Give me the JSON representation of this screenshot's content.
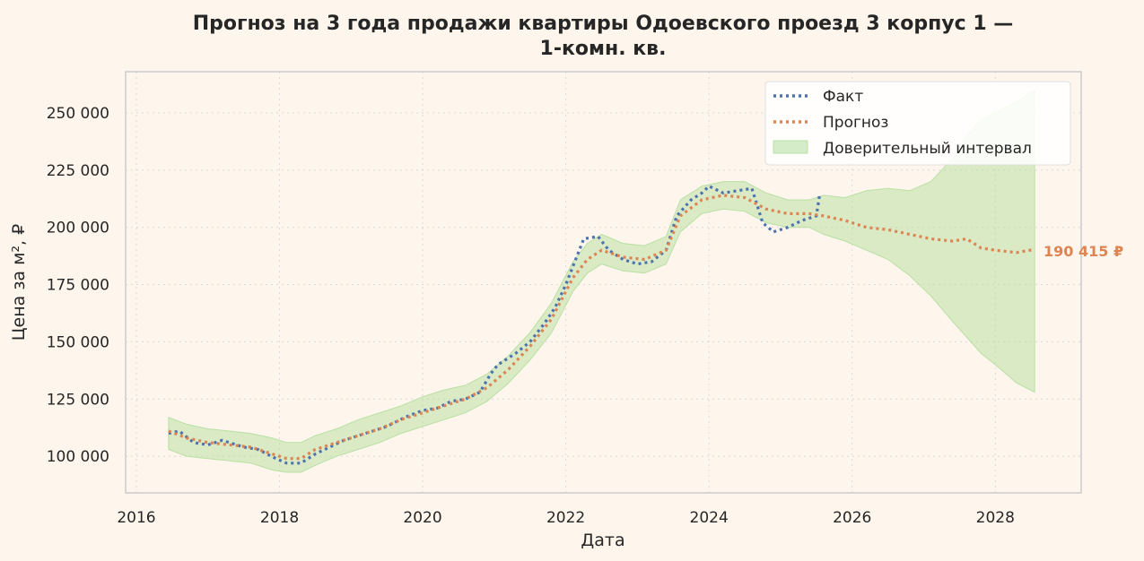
{
  "chart_data": {
    "type": "line",
    "title_lines": [
      "Прогноз на 3 года продажи квартиры  Одоевского проезд 3 корпус 1 —",
      "1-комн. кв."
    ],
    "xlabel": "Дата",
    "ylabel": "Цена за м², ₽",
    "xlim": [
      2015.85,
      2029.2
    ],
    "ylim": [
      84000,
      268000
    ],
    "x_ticks": [
      2016,
      2018,
      2020,
      2022,
      2024,
      2026,
      2028
    ],
    "x_tick_labels": [
      "2016",
      "2018",
      "2020",
      "2022",
      "2024",
      "2026",
      "2028"
    ],
    "y_ticks": [
      100000,
      125000,
      150000,
      175000,
      200000,
      225000,
      250000
    ],
    "y_tick_labels": [
      "100 000",
      "125 000",
      "150 000",
      "175 000",
      "200 000",
      "225 000",
      "250 000"
    ],
    "grid": true,
    "legend_position": "top-right",
    "legend": [
      "Факт",
      "Прогноз",
      "Доверительный интервал"
    ],
    "colors": {
      "fact": "#4c72b0",
      "forecast": "#dd8452",
      "ci": "#b9e0a5",
      "background": "#fef6ec",
      "plot_background": "#fef6ec",
      "spine": "#cccccc"
    },
    "end_label": "190 415 ₽",
    "series": [
      {
        "name": "Факт",
        "points": [
          [
            2016.45,
            110000
          ],
          [
            2016.6,
            111000
          ],
          [
            2016.8,
            106000
          ],
          [
            2017.0,
            105000
          ],
          [
            2017.2,
            107000
          ],
          [
            2017.5,
            104000
          ],
          [
            2017.7,
            103000
          ],
          [
            2017.95,
            99000
          ],
          [
            2018.1,
            97000
          ],
          [
            2018.3,
            97000
          ],
          [
            2018.5,
            101000
          ],
          [
            2018.7,
            104000
          ],
          [
            2018.9,
            107000
          ],
          [
            2019.2,
            110000
          ],
          [
            2019.5,
            113000
          ],
          [
            2019.75,
            117000
          ],
          [
            2020.0,
            120000
          ],
          [
            2020.2,
            121000
          ],
          [
            2020.4,
            124000
          ],
          [
            2020.6,
            125000
          ],
          [
            2020.8,
            128000
          ],
          [
            2020.95,
            136000
          ],
          [
            2021.05,
            140000
          ],
          [
            2021.3,
            145000
          ],
          [
            2021.5,
            150000
          ],
          [
            2021.7,
            158000
          ],
          [
            2021.85,
            165000
          ],
          [
            2022.0,
            175000
          ],
          [
            2022.15,
            187000
          ],
          [
            2022.25,
            195000
          ],
          [
            2022.45,
            196000
          ],
          [
            2022.6,
            190000
          ],
          [
            2022.8,
            186000
          ],
          [
            2023.0,
            184000
          ],
          [
            2023.2,
            185000
          ],
          [
            2023.4,
            190000
          ],
          [
            2023.55,
            205000
          ],
          [
            2023.75,
            212000
          ],
          [
            2023.9,
            215000
          ],
          [
            2024.0,
            218000
          ],
          [
            2024.2,
            215000
          ],
          [
            2024.4,
            216000
          ],
          [
            2024.6,
            217000
          ],
          [
            2024.75,
            202000
          ],
          [
            2024.9,
            198000
          ],
          [
            2025.1,
            200000
          ],
          [
            2025.3,
            203000
          ],
          [
            2025.5,
            205000
          ],
          [
            2025.55,
            215000
          ]
        ]
      },
      {
        "name": "Прогноз",
        "points": [
          [
            2016.45,
            111000
          ],
          [
            2016.7,
            108000
          ],
          [
            2017.0,
            106000
          ],
          [
            2017.3,
            105000
          ],
          [
            2017.6,
            104000
          ],
          [
            2017.9,
            101000
          ],
          [
            2018.1,
            99000
          ],
          [
            2018.3,
            99000
          ],
          [
            2018.5,
            103000
          ],
          [
            2018.8,
            106000
          ],
          [
            2019.1,
            109000
          ],
          [
            2019.4,
            112000
          ],
          [
            2019.7,
            116000
          ],
          [
            2020.0,
            119000
          ],
          [
            2020.3,
            122000
          ],
          [
            2020.6,
            125000
          ],
          [
            2020.9,
            130000
          ],
          [
            2021.2,
            138000
          ],
          [
            2021.5,
            148000
          ],
          [
            2021.8,
            160000
          ],
          [
            2022.1,
            178000
          ],
          [
            2022.3,
            186000
          ],
          [
            2022.5,
            190000
          ],
          [
            2022.8,
            187000
          ],
          [
            2023.1,
            186000
          ],
          [
            2023.4,
            190000
          ],
          [
            2023.6,
            205000
          ],
          [
            2023.9,
            212000
          ],
          [
            2024.2,
            214000
          ],
          [
            2024.5,
            213000
          ],
          [
            2024.8,
            208000
          ],
          [
            2025.1,
            206000
          ],
          [
            2025.4,
            206000
          ],
          [
            2025.6,
            205000
          ],
          [
            2025.9,
            203000
          ],
          [
            2026.2,
            200000
          ],
          [
            2026.5,
            199000
          ],
          [
            2026.8,
            197000
          ],
          [
            2027.1,
            195000
          ],
          [
            2027.4,
            194000
          ],
          [
            2027.6,
            195000
          ],
          [
            2027.8,
            191000
          ],
          [
            2028.0,
            190000
          ],
          [
            2028.3,
            189000
          ],
          [
            2028.55,
            190415
          ]
        ]
      },
      {
        "name": "Доверительный интервал",
        "x": [
          2016.45,
          2016.7,
          2017.0,
          2017.3,
          2017.6,
          2017.9,
          2018.1,
          2018.3,
          2018.5,
          2018.8,
          2019.1,
          2019.4,
          2019.7,
          2020.0,
          2020.3,
          2020.6,
          2020.9,
          2021.2,
          2021.5,
          2021.8,
          2022.1,
          2022.3,
          2022.5,
          2022.8,
          2023.1,
          2023.4,
          2023.6,
          2023.9,
          2024.2,
          2024.5,
          2024.8,
          2025.1,
          2025.4,
          2025.6,
          2025.9,
          2026.2,
          2026.5,
          2026.8,
          2027.1,
          2027.4,
          2027.6,
          2027.8,
          2028.0,
          2028.3,
          2028.55
        ],
        "lower": [
          103000,
          100000,
          99000,
          98000,
          97000,
          94000,
          93000,
          93000,
          96000,
          100000,
          103000,
          106000,
          110000,
          113000,
          116000,
          119000,
          124000,
          132000,
          142000,
          154000,
          172000,
          180000,
          184000,
          181000,
          180000,
          184000,
          198000,
          206000,
          208000,
          207000,
          202000,
          200000,
          200000,
          197000,
          194000,
          190000,
          186000,
          179000,
          170000,
          159000,
          152000,
          145000,
          140000,
          132000,
          128000
        ],
        "upper": [
          117000,
          114000,
          112000,
          111000,
          110000,
          108000,
          106000,
          106000,
          109000,
          112000,
          116000,
          119000,
          122000,
          126000,
          129000,
          131000,
          136000,
          144000,
          154000,
          167000,
          185000,
          193000,
          197000,
          193000,
          192000,
          196000,
          212000,
          218000,
          220000,
          220000,
          215000,
          212000,
          212000,
          214000,
          213000,
          216000,
          217000,
          216000,
          220000,
          230000,
          240000,
          247000,
          250000,
          255000,
          260000
        ]
      }
    ]
  }
}
